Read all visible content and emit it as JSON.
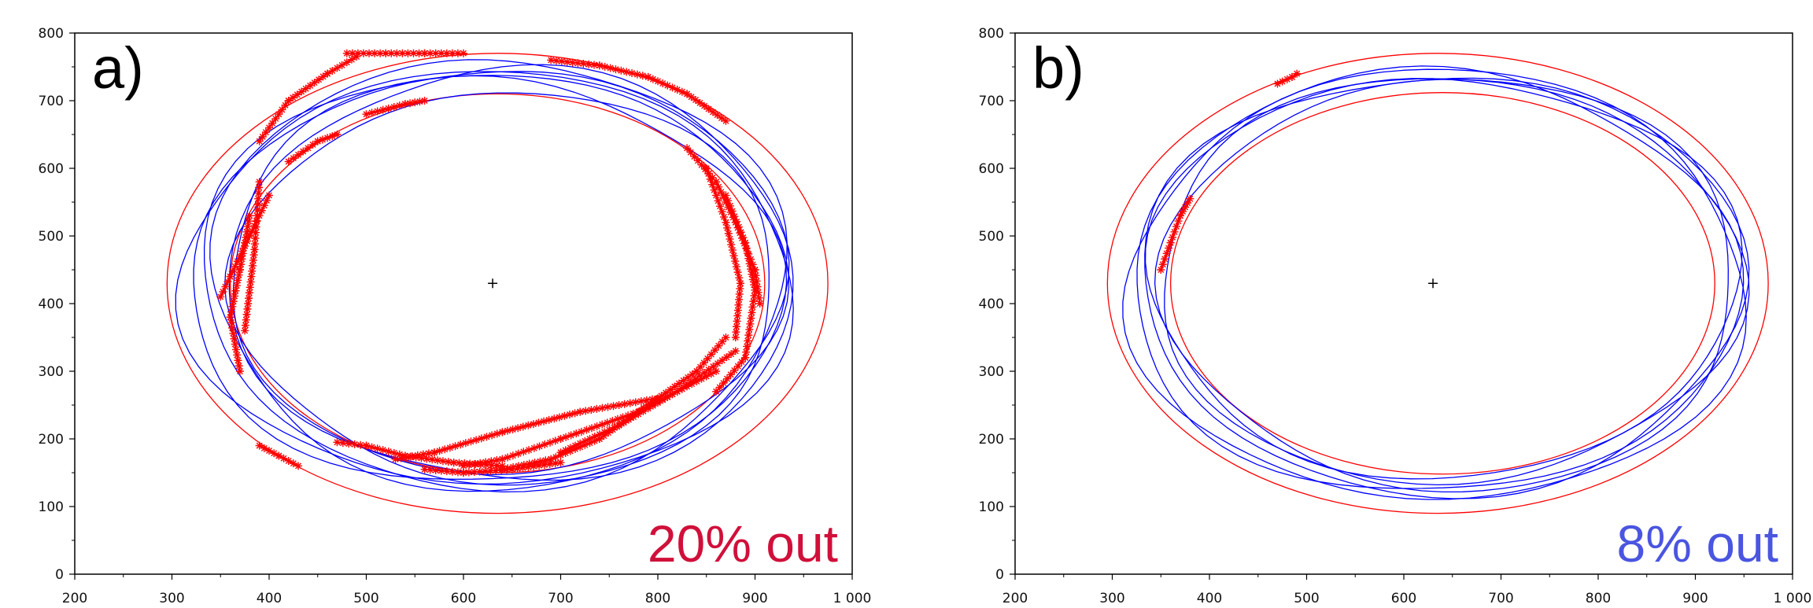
{
  "chart_data": [
    {
      "type": "scatter",
      "panel_label": "a)",
      "annotation": "20% out",
      "annotation_color": "#d0103a",
      "xlim": [
        200,
        1000
      ],
      "ylim": [
        0,
        800
      ],
      "xticks": [
        "200",
        "300",
        "400",
        "500",
        "600",
        "700",
        "800",
        "900",
        "1 000"
      ],
      "yticks": [
        "0",
        "100",
        "200",
        "300",
        "400",
        "500",
        "600",
        "700",
        "800"
      ],
      "center": [
        630,
        430
      ],
      "outer_ellipse": {
        "cx": 635,
        "cy": 430,
        "rx": 340,
        "ry": 340,
        "color": "#ff0000"
      },
      "inner_ellipse": {
        "cx": 635,
        "cy": 430,
        "rx": 275,
        "ry": 280,
        "color": "#ff0000"
      },
      "trajectory_color": "#0000ff",
      "out_marker_color": "#ff0000",
      "trajectory_loops": [
        {
          "cx": 630,
          "cy": 440,
          "rx": 300,
          "ry": 310
        },
        {
          "cx": 640,
          "cy": 445,
          "rx": 285,
          "ry": 295
        },
        {
          "cx": 625,
          "cy": 435,
          "rx": 315,
          "ry": 305
        },
        {
          "cx": 645,
          "cy": 425,
          "rx": 280,
          "ry": 290
        },
        {
          "cx": 635,
          "cy": 445,
          "rx": 295,
          "ry": 318
        },
        {
          "cx": 620,
          "cy": 430,
          "rx": 305,
          "ry": 298
        },
        {
          "cx": 650,
          "cy": 440,
          "rx": 290,
          "ry": 305
        }
      ],
      "out_segments": [
        [
          [
            480,
            770
          ],
          [
            520,
            770
          ],
          [
            560,
            770
          ],
          [
            600,
            770
          ]
        ],
        [
          [
            690,
            760
          ],
          [
            740,
            752
          ],
          [
            790,
            735
          ],
          [
            830,
            710
          ],
          [
            870,
            670
          ]
        ],
        [
          [
            390,
            640
          ],
          [
            420,
            700
          ],
          [
            460,
            740
          ],
          [
            490,
            765
          ]
        ],
        [
          [
            420,
            610
          ],
          [
            450,
            640
          ],
          [
            470,
            650
          ]
        ],
        [
          [
            500,
            680
          ],
          [
            540,
            695
          ],
          [
            560,
            700
          ]
        ],
        [
          [
            400,
            560
          ],
          [
            380,
            500
          ],
          [
            360,
            440
          ],
          [
            350,
            410
          ]
        ],
        [
          [
            380,
            530
          ],
          [
            370,
            450
          ],
          [
            360,
            380
          ],
          [
            370,
            300
          ]
        ],
        [
          [
            390,
            580
          ],
          [
            385,
            480
          ],
          [
            375,
            360
          ]
        ],
        [
          [
            830,
            630
          ],
          [
            860,
            580
          ],
          [
            880,
            520
          ],
          [
            900,
            450
          ],
          [
            905,
            400
          ]
        ],
        [
          [
            850,
            600
          ],
          [
            870,
            520
          ],
          [
            885,
            430
          ],
          [
            880,
            350
          ]
        ],
        [
          [
            870,
            560
          ],
          [
            890,
            490
          ],
          [
            900,
            420
          ],
          [
            890,
            320
          ],
          [
            860,
            270
          ]
        ],
        [
          [
            870,
            350
          ],
          [
            840,
            300
          ],
          [
            790,
            250
          ],
          [
            740,
            200
          ],
          [
            690,
            170
          ],
          [
            640,
            155
          ]
        ],
        [
          [
            880,
            330
          ],
          [
            820,
            270
          ],
          [
            760,
            220
          ],
          [
            700,
            180
          ]
        ],
        [
          [
            860,
            300
          ],
          [
            780,
            240
          ],
          [
            700,
            200
          ],
          [
            640,
            170
          ],
          [
            600,
            160
          ]
        ],
        [
          [
            800,
            260
          ],
          [
            720,
            240
          ],
          [
            640,
            210
          ],
          [
            570,
            180
          ],
          [
            530,
            170
          ]
        ],
        [
          [
            640,
            160
          ],
          [
            590,
            165
          ],
          [
            540,
            175
          ],
          [
            500,
            190
          ],
          [
            470,
            195
          ]
        ],
        [
          [
            560,
            155
          ],
          [
            600,
            150
          ],
          [
            650,
            155
          ],
          [
            700,
            165
          ]
        ],
        [
          [
            390,
            190
          ],
          [
            410,
            175
          ],
          [
            430,
            160
          ]
        ]
      ]
    },
    {
      "type": "scatter",
      "panel_label": "b)",
      "annotation": "8% out",
      "annotation_color": "#4a55e0",
      "xlim": [
        200,
        1000
      ],
      "ylim": [
        0,
        800
      ],
      "xticks": [
        "200",
        "300",
        "400",
        "500",
        "600",
        "700",
        "800",
        "900",
        "1 000"
      ],
      "yticks": [
        "0",
        "100",
        "200",
        "300",
        "400",
        "500",
        "600",
        "700",
        "800"
      ],
      "center": [
        630,
        430
      ],
      "outer_ellipse": {
        "cx": 635,
        "cy": 430,
        "rx": 340,
        "ry": 340,
        "color": "#ff0000"
      },
      "inner_ellipse": {
        "cx": 640,
        "cy": 430,
        "rx": 280,
        "ry": 282,
        "color": "#ff0000"
      },
      "trajectory_color": "#0000ff",
      "out_marker_color": "#ff0000",
      "trajectory_loops": [
        {
          "cx": 640,
          "cy": 430,
          "rx": 310,
          "ry": 310
        },
        {
          "cx": 645,
          "cy": 435,
          "rx": 300,
          "ry": 300
        },
        {
          "cx": 635,
          "cy": 425,
          "rx": 318,
          "ry": 318
        },
        {
          "cx": 650,
          "cy": 430,
          "rx": 295,
          "ry": 305
        },
        {
          "cx": 640,
          "cy": 440,
          "rx": 305,
          "ry": 295
        },
        {
          "cx": 630,
          "cy": 430,
          "rx": 312,
          "ry": 312
        }
      ],
      "out_segments": [
        [
          [
            470,
            725
          ],
          [
            485,
            735
          ],
          [
            490,
            740
          ]
        ],
        [
          [
            350,
            450
          ],
          [
            360,
            490
          ],
          [
            370,
            530
          ],
          [
            380,
            555
          ]
        ]
      ]
    }
  ]
}
